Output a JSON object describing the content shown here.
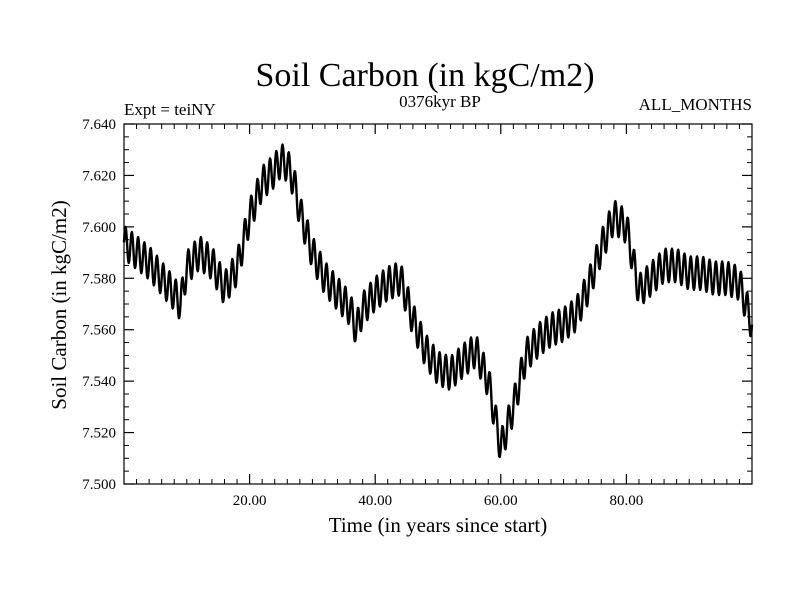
{
  "chart_data": {
    "type": "line",
    "title": "Soil Carbon (in kgC/m2)",
    "subtitle_left": "Expt = teiNY",
    "subtitle_center": "0376kyr BP",
    "subtitle_right": "ALL_MONTHS",
    "xlabel": "Time (in years since start)",
    "ylabel": "Soil Carbon (in kgC/m2)",
    "xlim": [
      0,
      100
    ],
    "ylim": [
      7.5,
      7.64
    ],
    "x_ticks": [
      20,
      40,
      60,
      80
    ],
    "x_tick_labels": [
      "20.00",
      "40.00",
      "60.00",
      "80.00"
    ],
    "y_ticks": [
      7.5,
      7.52,
      7.54,
      7.56,
      7.58,
      7.6,
      7.62,
      7.64
    ],
    "y_tick_labels": [
      "7.500",
      "7.520",
      "7.540",
      "7.560",
      "7.580",
      "7.600",
      "7.620",
      "7.640"
    ],
    "seasonal_amplitude": 0.0065,
    "seasonal_period_years": 1,
    "trend": {
      "x": [
        0,
        2,
        4,
        6,
        8,
        9,
        10,
        12,
        14,
        16,
        18,
        20,
        22,
        24,
        25,
        26,
        27,
        28,
        30,
        32,
        34,
        36,
        37,
        38,
        40,
        42,
        44,
        46,
        48,
        50,
        52,
        54,
        56,
        58,
        60,
        62,
        64,
        66,
        68,
        70,
        72,
        74,
        76,
        78,
        80,
        82,
        84,
        86,
        88,
        90,
        92,
        94,
        96,
        98,
        100
      ],
      "y": [
        7.594,
        7.59,
        7.586,
        7.58,
        7.574,
        7.57,
        7.584,
        7.59,
        7.586,
        7.576,
        7.584,
        7.604,
        7.617,
        7.622,
        7.626,
        7.624,
        7.618,
        7.606,
        7.59,
        7.58,
        7.574,
        7.568,
        7.56,
        7.568,
        7.574,
        7.578,
        7.58,
        7.564,
        7.552,
        7.545,
        7.543,
        7.548,
        7.552,
        7.54,
        7.514,
        7.53,
        7.55,
        7.556,
        7.56,
        7.562,
        7.566,
        7.577,
        7.592,
        7.604,
        7.6,
        7.575,
        7.58,
        7.585,
        7.585,
        7.582,
        7.582,
        7.58,
        7.58,
        7.578,
        7.562
      ]
    }
  }
}
